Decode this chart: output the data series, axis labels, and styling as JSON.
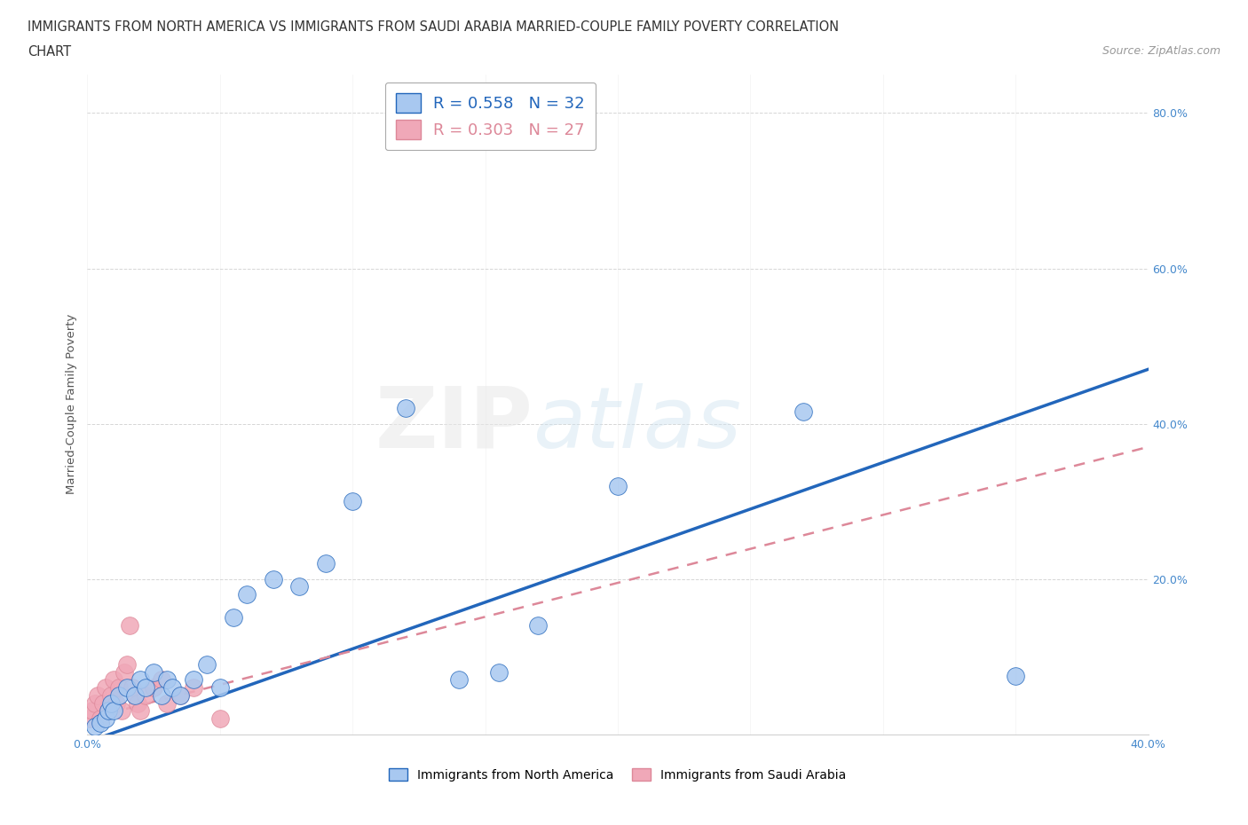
{
  "title_line1": "IMMIGRANTS FROM NORTH AMERICA VS IMMIGRANTS FROM SAUDI ARABIA MARRIED-COUPLE FAMILY POVERTY CORRELATION",
  "title_line2": "CHART",
  "source": "Source: ZipAtlas.com",
  "ylabel": "Married-Couple Family Poverty",
  "xlim": [
    0.0,
    0.4
  ],
  "ylim": [
    0.0,
    0.85
  ],
  "xticks": [
    0.0,
    0.05,
    0.1,
    0.15,
    0.2,
    0.25,
    0.3,
    0.35,
    0.4
  ],
  "xticklabels": [
    "0.0%",
    "",
    "",
    "",
    "",
    "",
    "",
    "",
    "40.0%"
  ],
  "yticks": [
    0.0,
    0.2,
    0.4,
    0.6,
    0.8
  ],
  "yticklabels": [
    "",
    "20.0%",
    "40.0%",
    "60.0%",
    "80.0%"
  ],
  "grid_color": "#cccccc",
  "background_color": "#ffffff",
  "R_north_america": 0.558,
  "N_north_america": 32,
  "R_saudi_arabia": 0.303,
  "N_saudi_arabia": 27,
  "color_north_america": "#a8c8f0",
  "color_saudi_arabia": "#f0a8b8",
  "line_color_north_america": "#2266bb",
  "line_color_saudi_arabia": "#dd8899",
  "north_america_x": [
    0.003,
    0.005,
    0.007,
    0.008,
    0.009,
    0.01,
    0.012,
    0.015,
    0.018,
    0.02,
    0.022,
    0.025,
    0.028,
    0.03,
    0.032,
    0.035,
    0.04,
    0.045,
    0.05,
    0.055,
    0.06,
    0.07,
    0.08,
    0.09,
    0.1,
    0.12,
    0.14,
    0.155,
    0.17,
    0.2,
    0.27,
    0.35
  ],
  "north_america_y": [
    0.01,
    0.015,
    0.02,
    0.03,
    0.04,
    0.03,
    0.05,
    0.06,
    0.05,
    0.07,
    0.06,
    0.08,
    0.05,
    0.07,
    0.06,
    0.05,
    0.07,
    0.09,
    0.06,
    0.15,
    0.18,
    0.2,
    0.19,
    0.22,
    0.3,
    0.42,
    0.07,
    0.08,
    0.14,
    0.32,
    0.415,
    0.075
  ],
  "saudi_arabia_x": [
    0.001,
    0.002,
    0.003,
    0.004,
    0.005,
    0.006,
    0.007,
    0.008,
    0.009,
    0.01,
    0.011,
    0.012,
    0.013,
    0.014,
    0.015,
    0.016,
    0.017,
    0.018,
    0.019,
    0.02,
    0.022,
    0.025,
    0.028,
    0.03,
    0.035,
    0.04,
    0.05
  ],
  "saudi_arabia_y": [
    0.02,
    0.03,
    0.04,
    0.05,
    0.02,
    0.04,
    0.06,
    0.03,
    0.05,
    0.07,
    0.04,
    0.06,
    0.03,
    0.08,
    0.09,
    0.14,
    0.06,
    0.05,
    0.04,
    0.03,
    0.05,
    0.06,
    0.07,
    0.04,
    0.05,
    0.06,
    0.02
  ],
  "trendline_na_x0": 0.0,
  "trendline_na_y0": -0.01,
  "trendline_na_x1": 0.4,
  "trendline_na_y1": 0.47,
  "trendline_sa_x0": 0.0,
  "trendline_sa_y0": 0.02,
  "trendline_sa_x1": 0.4,
  "trendline_sa_y1": 0.37
}
